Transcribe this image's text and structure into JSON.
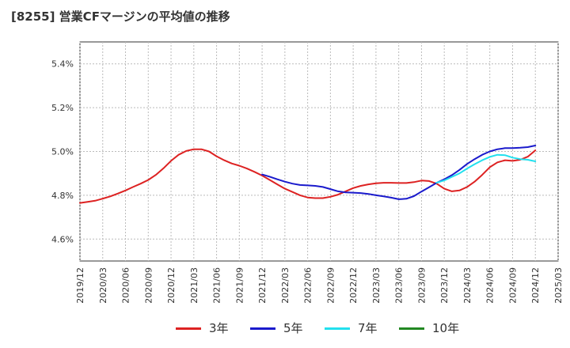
{
  "header": {
    "title": "[8255]  営業CFマージンの平均値の推移"
  },
  "chart_data": {
    "type": "line",
    "title": "[8255]  営業CFマージンの平均値の推移",
    "xlabel": "",
    "ylabel": "",
    "x_ticks": [
      "2019/12",
      "2020/03",
      "2020/06",
      "2020/09",
      "2020/12",
      "2021/03",
      "2021/06",
      "2021/09",
      "2021/12",
      "2022/03",
      "2022/06",
      "2022/09",
      "2022/12",
      "2023/03",
      "2023/06",
      "2023/09",
      "2023/12",
      "2024/03",
      "2024/06",
      "2024/09",
      "2024/12",
      "2025/03"
    ],
    "y_ticks": [
      "4.6%",
      "4.8%",
      "5.0%",
      "5.2%",
      "5.4%"
    ],
    "y_tick_values": [
      4.6,
      4.8,
      5.0,
      5.2,
      5.4
    ],
    "ylim": [
      4.5,
      5.5
    ],
    "xlim": [
      "2019/12",
      "2025/03"
    ],
    "grid": "horizontal-dashed",
    "legend_position": "bottom",
    "series": [
      {
        "name": "3年",
        "color": "#dd2222",
        "x": [
          "2019/12",
          "2020/01",
          "2020/02",
          "2020/03",
          "2020/04",
          "2020/05",
          "2020/06",
          "2020/07",
          "2020/08",
          "2020/09",
          "2020/10",
          "2020/11",
          "2020/12",
          "2021/01",
          "2021/02",
          "2021/03",
          "2021/04",
          "2021/05",
          "2021/06",
          "2021/07",
          "2021/08",
          "2021/09",
          "2021/10",
          "2021/11",
          "2021/12",
          "2022/01",
          "2022/02",
          "2022/03",
          "2022/04",
          "2022/05",
          "2022/06",
          "2022/07",
          "2022/08",
          "2022/09",
          "2022/10",
          "2022/11",
          "2022/12",
          "2023/01",
          "2023/02",
          "2023/03",
          "2023/04",
          "2023/05",
          "2023/06",
          "2023/07",
          "2023/08",
          "2023/09",
          "2023/10",
          "2023/11",
          "2023/12",
          "2024/01",
          "2024/02",
          "2024/03",
          "2024/04",
          "2024/05",
          "2024/06",
          "2024/07",
          "2024/08",
          "2024/09",
          "2024/10",
          "2024/11",
          "2024/12"
        ],
        "values": [
          4.765,
          4.77,
          4.775,
          4.785,
          4.795,
          4.808,
          4.822,
          4.838,
          4.853,
          4.87,
          4.893,
          4.923,
          4.957,
          4.985,
          5.002,
          5.01,
          5.01,
          5.0,
          4.978,
          4.96,
          4.945,
          4.935,
          4.922,
          4.907,
          4.89,
          4.87,
          4.85,
          4.83,
          4.815,
          4.8,
          4.79,
          4.787,
          4.787,
          4.793,
          4.803,
          4.818,
          4.833,
          4.843,
          4.85,
          4.855,
          4.857,
          4.857,
          4.856,
          4.856,
          4.86,
          4.867,
          4.865,
          4.853,
          4.83,
          4.818,
          4.822,
          4.838,
          4.862,
          4.893,
          4.928,
          4.95,
          4.96,
          4.957,
          4.962,
          4.976,
          5.005
        ]
      },
      {
        "name": "5年",
        "color": "#1a1acc",
        "x": [
          "2021/12",
          "2022/01",
          "2022/02",
          "2022/03",
          "2022/04",
          "2022/05",
          "2022/06",
          "2022/07",
          "2022/08",
          "2022/09",
          "2022/10",
          "2022/11",
          "2022/12",
          "2023/01",
          "2023/02",
          "2023/03",
          "2023/04",
          "2023/05",
          "2023/06",
          "2023/07",
          "2023/08",
          "2023/09",
          "2023/10",
          "2023/11",
          "2023/12",
          "2024/01",
          "2024/02",
          "2024/03",
          "2024/04",
          "2024/05",
          "2024/06",
          "2024/07",
          "2024/08",
          "2024/09",
          "2024/10",
          "2024/11",
          "2024/12"
        ],
        "values": [
          4.895,
          4.885,
          4.873,
          4.862,
          4.853,
          4.847,
          4.845,
          4.843,
          4.838,
          4.828,
          4.818,
          4.813,
          4.812,
          4.81,
          4.806,
          4.8,
          4.795,
          4.789,
          4.782,
          4.784,
          4.796,
          4.817,
          4.837,
          4.857,
          4.873,
          4.892,
          4.916,
          4.943,
          4.965,
          4.985,
          5.0,
          5.01,
          5.015,
          5.015,
          5.017,
          5.02,
          5.027
        ]
      },
      {
        "name": "7年",
        "color": "#22e0ee",
        "x": [
          "2023/11",
          "2023/12",
          "2024/01",
          "2024/02",
          "2024/03",
          "2024/04",
          "2024/05",
          "2024/06",
          "2024/07",
          "2024/08",
          "2024/09",
          "2024/10",
          "2024/11",
          "2024/12"
        ],
        "values": [
          4.857,
          4.868,
          4.884,
          4.9,
          4.922,
          4.942,
          4.96,
          4.975,
          4.985,
          4.983,
          4.972,
          4.965,
          4.962,
          4.955
        ]
      },
      {
        "name": "10年",
        "color": "#228822",
        "x": [],
        "values": []
      }
    ]
  }
}
